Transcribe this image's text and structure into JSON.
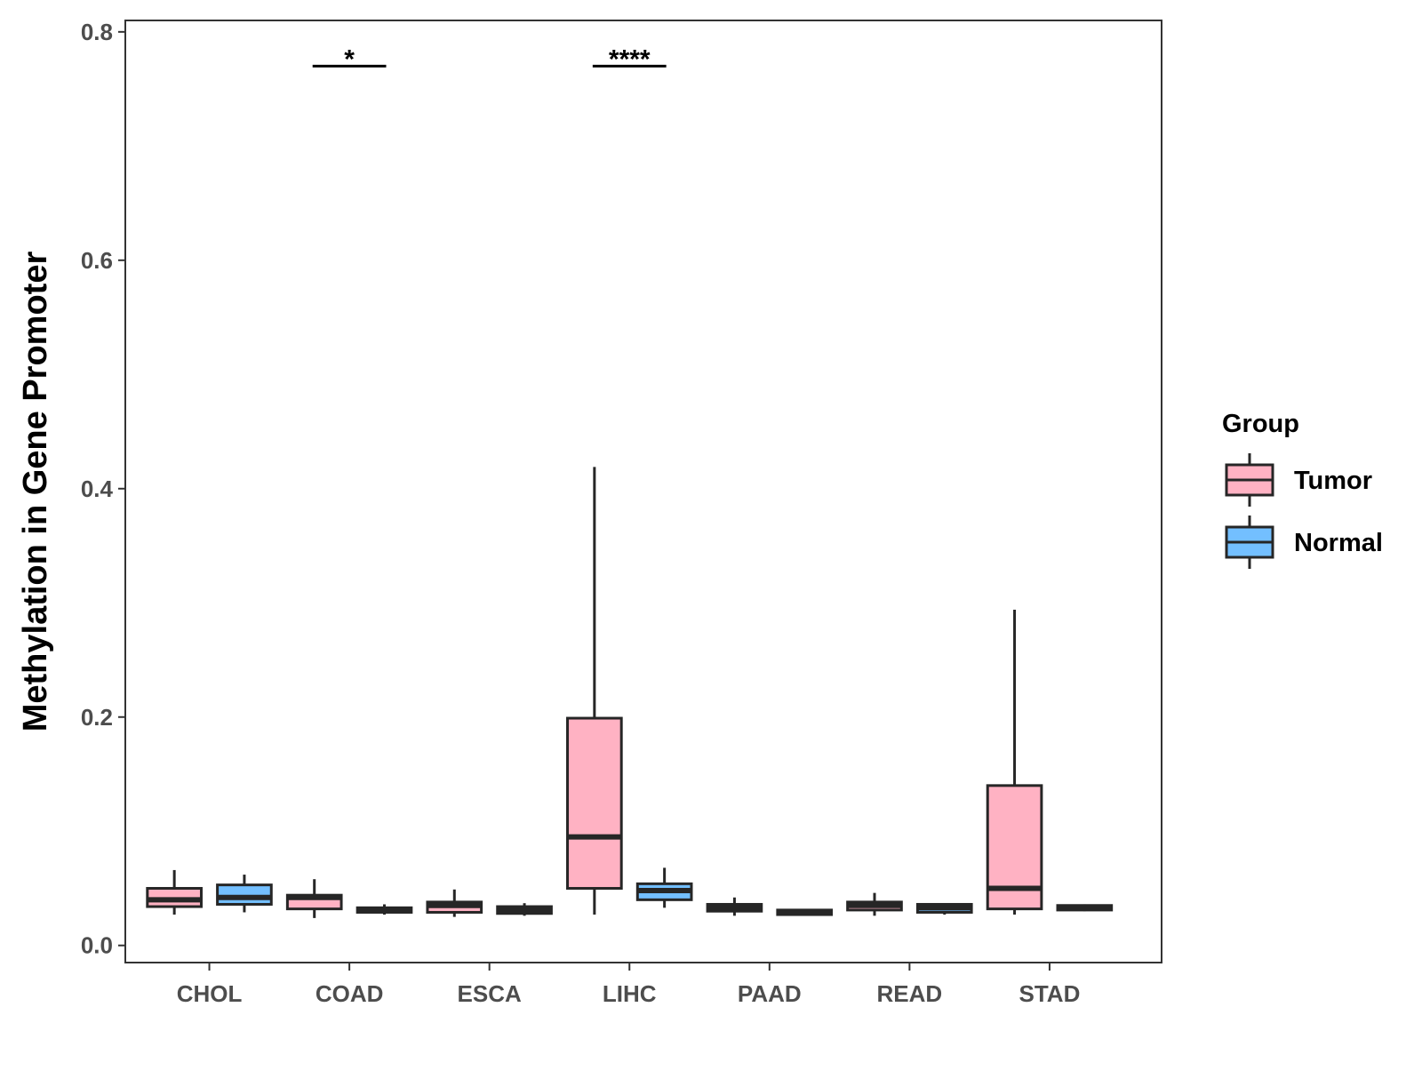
{
  "chart_data": {
    "type": "boxplot",
    "title": "",
    "xlabel": "",
    "ylabel": "Methylation in Gene Promoter",
    "ylim": [
      -0.015,
      0.81
    ],
    "yticks": [
      0.0,
      0.2,
      0.4,
      0.6,
      0.8
    ],
    "ytick_labels": [
      "0.0",
      "0.2",
      "0.4",
      "0.6",
      "0.8"
    ],
    "categories": [
      "CHOL",
      "COAD",
      "ESCA",
      "LIHC",
      "PAAD",
      "READ",
      "STAD"
    ],
    "legend": {
      "title": "Group",
      "position": "right",
      "entries": [
        {
          "name": "Tumor",
          "color": "#ffb2c3"
        },
        {
          "name": "Normal",
          "color": "#73bfff"
        }
      ]
    },
    "series": [
      {
        "name": "Tumor",
        "color": "#ffb2c3",
        "boxes": [
          {
            "category": "CHOL",
            "whisker_low": 0.027,
            "q1": 0.034,
            "median": 0.04,
            "q3": 0.05,
            "whisker_high": 0.066
          },
          {
            "category": "COAD",
            "whisker_low": 0.024,
            "q1": 0.032,
            "median": 0.042,
            "q3": 0.044,
            "whisker_high": 0.058
          },
          {
            "category": "ESCA",
            "whisker_low": 0.025,
            "q1": 0.029,
            "median": 0.035,
            "q3": 0.038,
            "whisker_high": 0.049
          },
          {
            "category": "LIHC",
            "whisker_low": 0.027,
            "q1": 0.05,
            "median": 0.095,
            "q3": 0.199,
            "whisker_high": 0.419
          },
          {
            "category": "PAAD",
            "whisker_low": 0.026,
            "q1": 0.03,
            "median": 0.033,
            "q3": 0.036,
            "whisker_high": 0.042
          },
          {
            "category": "READ",
            "whisker_low": 0.026,
            "q1": 0.031,
            "median": 0.035,
            "q3": 0.038,
            "whisker_high": 0.046
          },
          {
            "category": "STAD",
            "whisker_low": 0.027,
            "q1": 0.032,
            "median": 0.05,
            "q3": 0.14,
            "whisker_high": 0.294
          }
        ]
      },
      {
        "name": "Normal",
        "color": "#73bfff",
        "boxes": [
          {
            "category": "CHOL",
            "whisker_low": 0.029,
            "q1": 0.036,
            "median": 0.042,
            "q3": 0.053,
            "whisker_high": 0.062
          },
          {
            "category": "COAD",
            "whisker_low": 0.027,
            "q1": 0.029,
            "median": 0.031,
            "q3": 0.033,
            "whisker_high": 0.036
          },
          {
            "category": "ESCA",
            "whisker_low": 0.026,
            "q1": 0.028,
            "median": 0.031,
            "q3": 0.034,
            "whisker_high": 0.037
          },
          {
            "category": "LIHC",
            "whisker_low": 0.033,
            "q1": 0.04,
            "median": 0.048,
            "q3": 0.054,
            "whisker_high": 0.068
          },
          {
            "category": "PAAD",
            "whisker_low": 0.026,
            "q1": 0.027,
            "median": 0.029,
            "q3": 0.031,
            "whisker_high": 0.032
          },
          {
            "category": "READ",
            "whisker_low": 0.027,
            "q1": 0.029,
            "median": 0.033,
            "q3": 0.036,
            "whisker_high": 0.037
          },
          {
            "category": "STAD",
            "whisker_low": 0.03,
            "q1": 0.031,
            "median": 0.033,
            "q3": 0.035,
            "whisker_high": 0.036
          }
        ]
      }
    ],
    "annotations": [
      {
        "category": "COAD",
        "label": "*",
        "y": 0.77
      },
      {
        "category": "LIHC",
        "label": "****",
        "y": 0.77
      }
    ],
    "grid": false
  }
}
